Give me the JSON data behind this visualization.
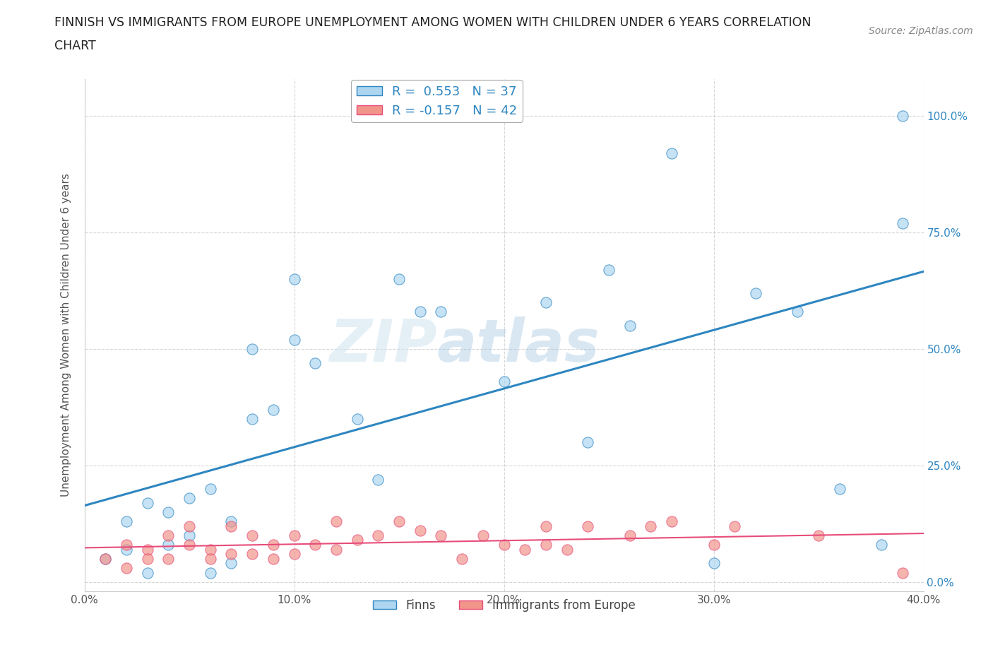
{
  "title_line1": "FINNISH VS IMMIGRANTS FROM EUROPE UNEMPLOYMENT AMONG WOMEN WITH CHILDREN UNDER 6 YEARS CORRELATION",
  "title_line2": "CHART",
  "source": "Source: ZipAtlas.com",
  "ylabel": "Unemployment Among Women with Children Under 6 years",
  "r_finns": 0.553,
  "n_finns": 37,
  "r_immigrants": -0.157,
  "n_immigrants": 42,
  "finns_color": "#aed6f1",
  "immigrants_color": "#f1948a",
  "finns_line_color": "#2e86c1",
  "immigrants_line_color": "#e74c7a",
  "background_color": "#ffffff",
  "xlim": [
    0.0,
    0.4
  ],
  "ylim": [
    -0.02,
    1.08
  ],
  "xticks": [
    0.0,
    0.1,
    0.2,
    0.3,
    0.4
  ],
  "yticks": [
    0.0,
    0.25,
    0.5,
    0.75,
    1.0
  ],
  "xtick_labels": [
    "0.0%",
    "10.0%",
    "20.0%",
    "30.0%",
    "40.0%"
  ],
  "ytick_labels": [
    "0.0%",
    "25.0%",
    "50.0%",
    "75.0%",
    "100.0%"
  ],
  "watermark_zip": "ZIP",
  "watermark_atlas": "atlas",
  "finns_x": [
    0.01,
    0.02,
    0.02,
    0.03,
    0.03,
    0.04,
    0.04,
    0.05,
    0.05,
    0.06,
    0.06,
    0.07,
    0.07,
    0.08,
    0.08,
    0.09,
    0.1,
    0.1,
    0.11,
    0.13,
    0.14,
    0.15,
    0.16,
    0.17,
    0.2,
    0.22,
    0.24,
    0.25,
    0.26,
    0.28,
    0.3,
    0.32,
    0.34,
    0.36,
    0.38,
    0.39,
    0.39
  ],
  "finns_y": [
    0.05,
    0.07,
    0.13,
    0.17,
    0.02,
    0.15,
    0.08,
    0.18,
    0.1,
    0.2,
    0.02,
    0.04,
    0.13,
    0.35,
    0.5,
    0.37,
    0.52,
    0.65,
    0.47,
    0.35,
    0.22,
    0.65,
    0.58,
    0.58,
    0.43,
    0.6,
    0.3,
    0.67,
    0.55,
    0.92,
    0.04,
    0.62,
    0.58,
    0.2,
    0.08,
    1.0,
    0.77
  ],
  "immigrants_x": [
    0.01,
    0.02,
    0.02,
    0.03,
    0.03,
    0.04,
    0.04,
    0.05,
    0.05,
    0.06,
    0.06,
    0.07,
    0.07,
    0.08,
    0.08,
    0.09,
    0.09,
    0.1,
    0.1,
    0.11,
    0.12,
    0.12,
    0.13,
    0.14,
    0.15,
    0.16,
    0.17,
    0.18,
    0.19,
    0.2,
    0.21,
    0.22,
    0.22,
    0.23,
    0.24,
    0.26,
    0.27,
    0.28,
    0.3,
    0.31,
    0.35,
    0.39
  ],
  "immigrants_y": [
    0.05,
    0.08,
    0.03,
    0.07,
    0.05,
    0.1,
    0.05,
    0.12,
    0.08,
    0.07,
    0.05,
    0.12,
    0.06,
    0.1,
    0.06,
    0.08,
    0.05,
    0.1,
    0.06,
    0.08,
    0.07,
    0.13,
    0.09,
    0.1,
    0.13,
    0.11,
    0.1,
    0.05,
    0.1,
    0.08,
    0.07,
    0.12,
    0.08,
    0.07,
    0.12,
    0.1,
    0.12,
    0.13,
    0.08,
    0.12,
    0.1,
    0.02
  ]
}
